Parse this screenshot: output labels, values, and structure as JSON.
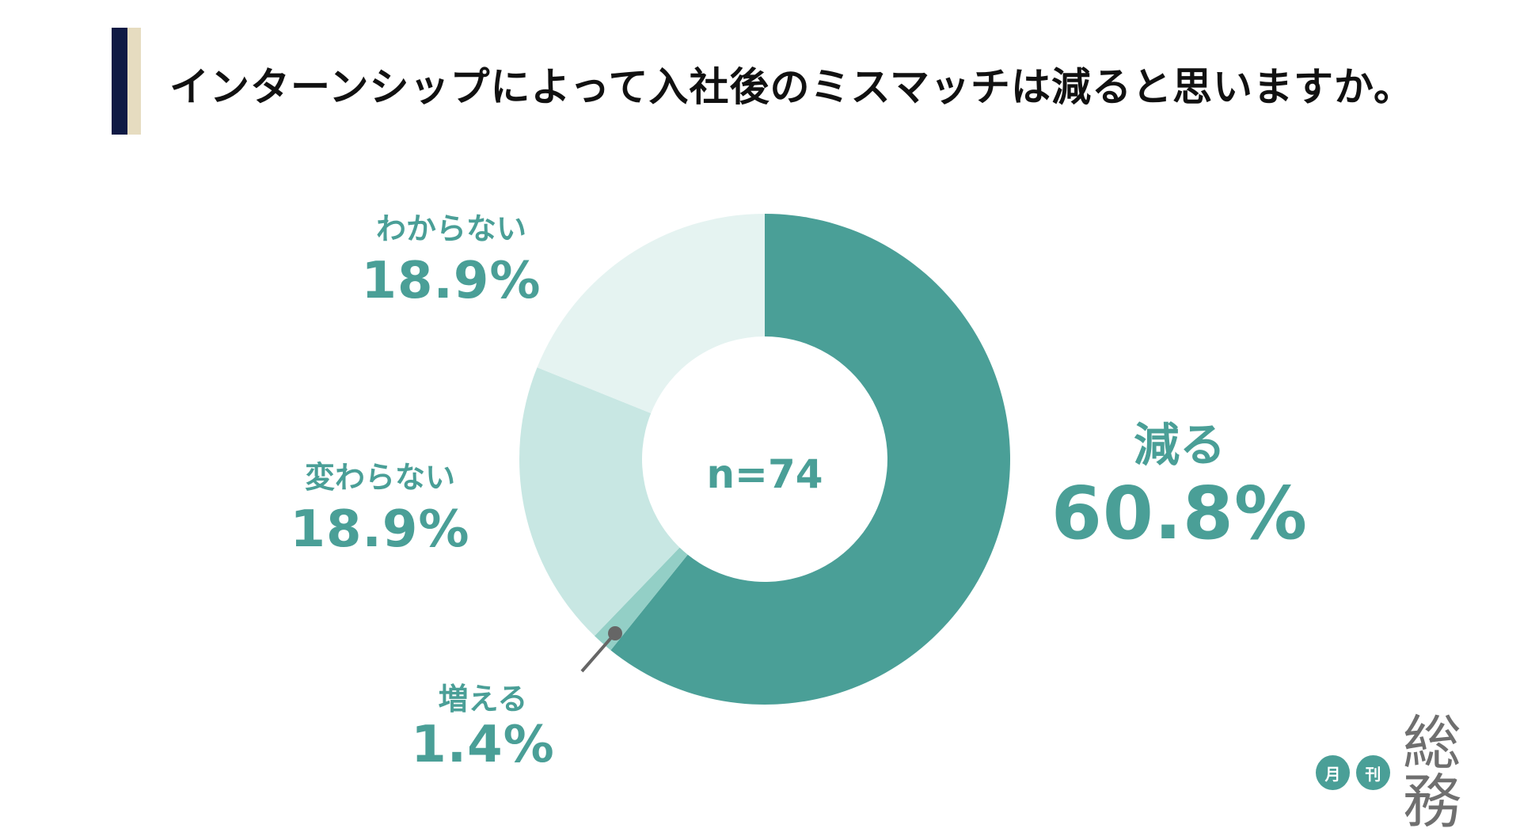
{
  "title": "インターンシップによって入社後のミスマッチは減ると思いますか。",
  "colors": {
    "accent": "#4a9f97",
    "title_bar_dark": "#0f1a44",
    "title_bar_light": "#e6dcc0",
    "slices": [
      "#4a9f97",
      "#93cfc6",
      "#c8e7e3",
      "#e5f3f1"
    ]
  },
  "chart_data": {
    "type": "pie",
    "variant": "donut",
    "center_label": "n=74",
    "slices": [
      {
        "label": "減る",
        "value": 60.8,
        "display": "60.8%"
      },
      {
        "label": "増える",
        "value": 1.4,
        "display": "1.4%"
      },
      {
        "label": "変わらない",
        "value": 18.9,
        "display": "18.9%"
      },
      {
        "label": "わからない",
        "value": 18.9,
        "display": "18.9%"
      }
    ],
    "start_angle": "12 o'clock",
    "direction": "clockwise"
  },
  "logo": {
    "circle1": "月",
    "circle2": "刊",
    "text": "総務"
  }
}
